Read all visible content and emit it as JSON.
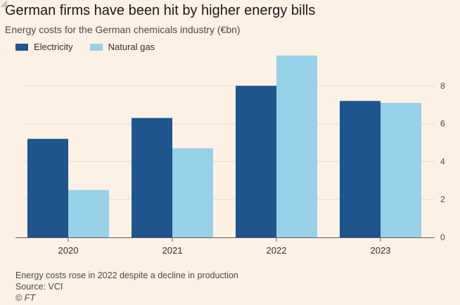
{
  "title": "German firms have been hit by higher energy bills",
  "subtitle": "Energy costs for the German chemicals industry (€bn)",
  "footer": {
    "note": "Energy costs rose in 2022 despite a decline in production",
    "source": "Source: VCI",
    "credit": "© FT"
  },
  "colors": {
    "electricity": "#1d558c",
    "natural_gas": "#96d1e7",
    "grid": "#e9dbcf",
    "axis": "#66605c"
  },
  "chart_data": {
    "type": "bar",
    "title": "German firms have been hit by higher energy bills",
    "subtitle": "Energy costs for the German chemicals industry (€bn)",
    "categories": [
      "2020",
      "2021",
      "2022",
      "2023"
    ],
    "series": [
      {
        "name": "Electricity",
        "values": [
          5.2,
          6.3,
          8.0,
          7.2
        ]
      },
      {
        "name": "Natural gas",
        "values": [
          2.5,
          4.7,
          9.6,
          7.1
        ]
      }
    ],
    "yticks": [
      "0",
      "2",
      "4",
      "6",
      "8"
    ],
    "ylim": [
      0,
      10
    ],
    "y_axis_side": "right",
    "grid": true,
    "legend_position": "top-left"
  }
}
